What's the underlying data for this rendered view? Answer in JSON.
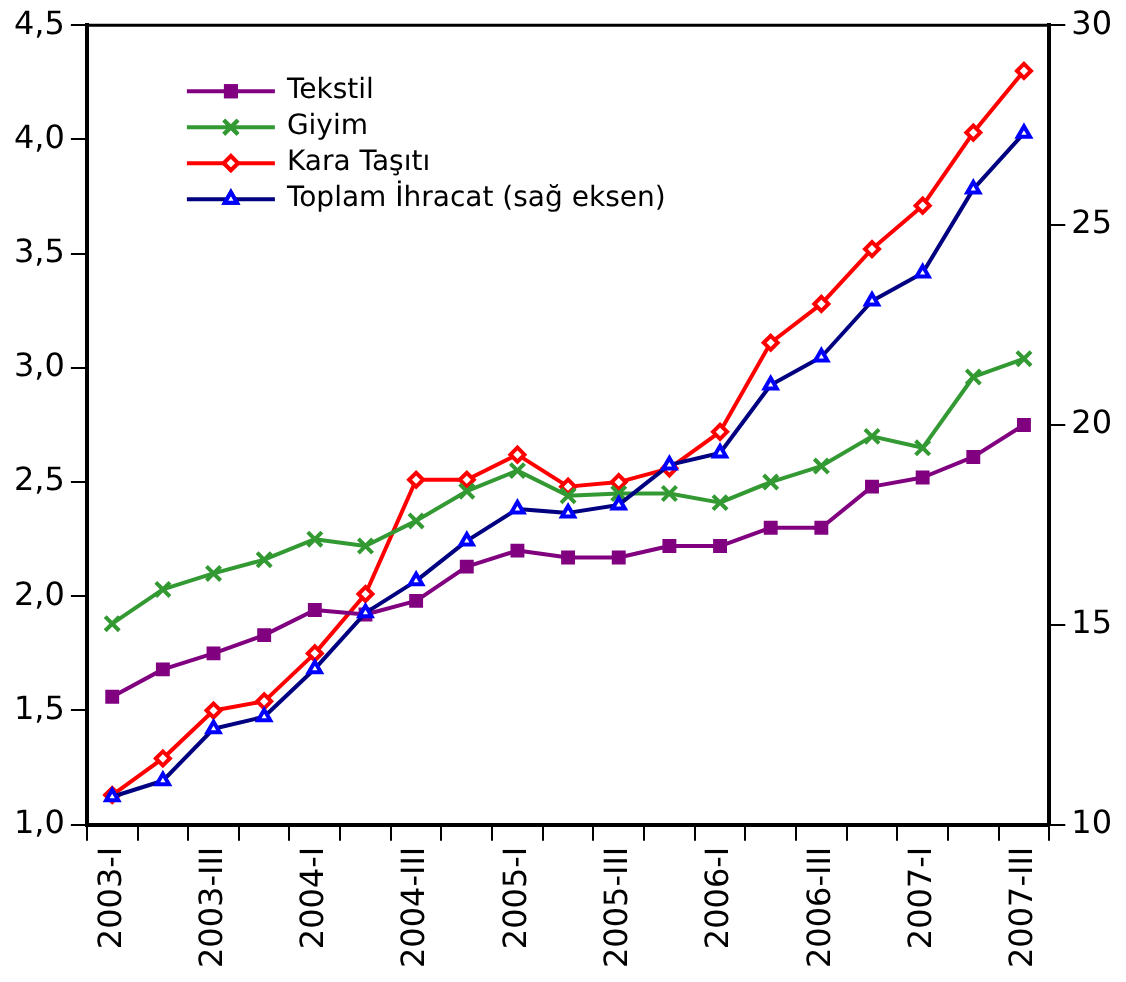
{
  "chart_data": {
    "type": "line",
    "categories": [
      "2003-I",
      null,
      "2003-III",
      null,
      "2004-I",
      null,
      "2004-III",
      null,
      "2005-I",
      null,
      "2005-III",
      null,
      "2006-I",
      null,
      "2006-III",
      null,
      "2007-I",
      null,
      "2007-III"
    ],
    "series": [
      {
        "name": "Tekstil",
        "color": "#800080",
        "marker": "square",
        "values": [
          1.56,
          1.68,
          1.75,
          1.83,
          1.94,
          1.92,
          1.98,
          2.13,
          2.2,
          2.17,
          2.17,
          2.22,
          2.22,
          2.3,
          2.3,
          2.48,
          2.52,
          2.61,
          2.75
        ]
      },
      {
        "name": "Giyim",
        "color": "#339933",
        "marker": "cross",
        "values": [
          1.88,
          2.03,
          2.1,
          2.16,
          2.25,
          2.22,
          2.33,
          2.46,
          2.55,
          2.44,
          2.45,
          2.45,
          2.41,
          2.5,
          2.57,
          2.7,
          2.65,
          2.96,
          3.04
        ]
      },
      {
        "name": "Kara Taşıtı",
        "color": "#ff0000",
        "marker": "diamond",
        "values": [
          1.13,
          1.29,
          1.5,
          1.54,
          1.75,
          2.01,
          2.51,
          2.51,
          2.62,
          2.48,
          2.5,
          2.56,
          2.72,
          3.11,
          3.28,
          3.52,
          3.71,
          4.03,
          4.3
        ]
      },
      {
        "name": "Toplam İhracat (sağ eksen)",
        "color": "#000080",
        "marker": "triangle",
        "axis": "y2",
        "values": [
          10.7,
          11.1,
          12.4,
          12.7,
          13.9,
          15.3,
          16.1,
          17.1,
          17.9,
          17.8,
          18.0,
          19.0,
          19.3,
          21.0,
          21.7,
          23.1,
          23.8,
          25.9,
          27.3
        ]
      }
    ],
    "ylim": [
      1.0,
      4.5
    ],
    "yticks": [
      {
        "value": 1.0,
        "label": "1,0"
      },
      {
        "value": 1.5,
        "label": "1,5"
      },
      {
        "value": 2.0,
        "label": "2,0"
      },
      {
        "value": 2.5,
        "label": "2,5"
      },
      {
        "value": 3.0,
        "label": "3,0"
      },
      {
        "value": 3.5,
        "label": "3,5"
      },
      {
        "value": 4.0,
        "label": "4,0"
      },
      {
        "value": 4.5,
        "label": "4,5"
      }
    ],
    "y2lim": [
      10,
      30
    ],
    "y2ticks": [
      10,
      15,
      20,
      25,
      30
    ],
    "legend": "top left",
    "grid": false
  }
}
